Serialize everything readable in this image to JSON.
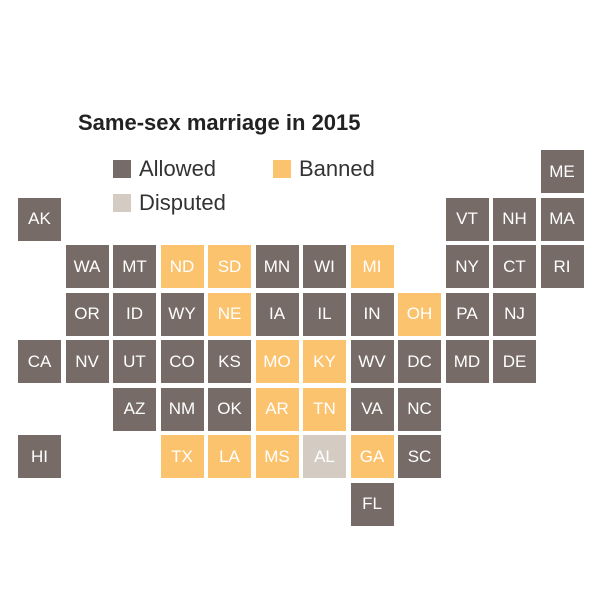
{
  "title": "Same-sex marriage in 2015",
  "colors": {
    "allowed": "#766b66",
    "banned": "#fcc36e",
    "disputed": "#d4ccc2"
  },
  "legend": [
    {
      "key": "allowed",
      "label": "Allowed"
    },
    {
      "key": "banned",
      "label": "Banned"
    },
    {
      "key": "disputed",
      "label": "Disputed"
    }
  ],
  "states": [
    {
      "abbr": "ME",
      "row": 0,
      "col": 11,
      "status": "allowed"
    },
    {
      "abbr": "AK",
      "row": 1,
      "col": 0,
      "status": "allowed"
    },
    {
      "abbr": "VT",
      "row": 1,
      "col": 9,
      "status": "allowed"
    },
    {
      "abbr": "NH",
      "row": 1,
      "col": 10,
      "status": "allowed"
    },
    {
      "abbr": "MA",
      "row": 1,
      "col": 11,
      "status": "allowed"
    },
    {
      "abbr": "WA",
      "row": 2,
      "col": 1,
      "status": "allowed"
    },
    {
      "abbr": "MT",
      "row": 2,
      "col": 2,
      "status": "allowed"
    },
    {
      "abbr": "ND",
      "row": 2,
      "col": 3,
      "status": "banned"
    },
    {
      "abbr": "SD",
      "row": 2,
      "col": 4,
      "status": "banned"
    },
    {
      "abbr": "MN",
      "row": 2,
      "col": 5,
      "status": "allowed"
    },
    {
      "abbr": "WI",
      "row": 2,
      "col": 6,
      "status": "allowed"
    },
    {
      "abbr": "MI",
      "row": 2,
      "col": 7,
      "status": "banned"
    },
    {
      "abbr": "NY",
      "row": 2,
      "col": 9,
      "status": "allowed"
    },
    {
      "abbr": "CT",
      "row": 2,
      "col": 10,
      "status": "allowed"
    },
    {
      "abbr": "RI",
      "row": 2,
      "col": 11,
      "status": "allowed"
    },
    {
      "abbr": "OR",
      "row": 3,
      "col": 1,
      "status": "allowed"
    },
    {
      "abbr": "ID",
      "row": 3,
      "col": 2,
      "status": "allowed"
    },
    {
      "abbr": "WY",
      "row": 3,
      "col": 3,
      "status": "allowed"
    },
    {
      "abbr": "NE",
      "row": 3,
      "col": 4,
      "status": "banned"
    },
    {
      "abbr": "IA",
      "row": 3,
      "col": 5,
      "status": "allowed"
    },
    {
      "abbr": "IL",
      "row": 3,
      "col": 6,
      "status": "allowed"
    },
    {
      "abbr": "IN",
      "row": 3,
      "col": 7,
      "status": "allowed"
    },
    {
      "abbr": "OH",
      "row": 3,
      "col": 8,
      "status": "banned"
    },
    {
      "abbr": "PA",
      "row": 3,
      "col": 9,
      "status": "allowed"
    },
    {
      "abbr": "NJ",
      "row": 3,
      "col": 10,
      "status": "allowed"
    },
    {
      "abbr": "CA",
      "row": 4,
      "col": 0,
      "status": "allowed"
    },
    {
      "abbr": "NV",
      "row": 4,
      "col": 1,
      "status": "allowed"
    },
    {
      "abbr": "UT",
      "row": 4,
      "col": 2,
      "status": "allowed"
    },
    {
      "abbr": "CO",
      "row": 4,
      "col": 3,
      "status": "allowed"
    },
    {
      "abbr": "KS",
      "row": 4,
      "col": 4,
      "status": "allowed"
    },
    {
      "abbr": "MO",
      "row": 4,
      "col": 5,
      "status": "banned"
    },
    {
      "abbr": "KY",
      "row": 4,
      "col": 6,
      "status": "banned"
    },
    {
      "abbr": "WV",
      "row": 4,
      "col": 7,
      "status": "allowed"
    },
    {
      "abbr": "DC",
      "row": 4,
      "col": 8,
      "status": "allowed"
    },
    {
      "abbr": "MD",
      "row": 4,
      "col": 9,
      "status": "allowed"
    },
    {
      "abbr": "DE",
      "row": 4,
      "col": 10,
      "status": "allowed"
    },
    {
      "abbr": "AZ",
      "row": 5,
      "col": 2,
      "status": "allowed"
    },
    {
      "abbr": "NM",
      "row": 5,
      "col": 3,
      "status": "allowed"
    },
    {
      "abbr": "OK",
      "row": 5,
      "col": 4,
      "status": "allowed"
    },
    {
      "abbr": "AR",
      "row": 5,
      "col": 5,
      "status": "banned"
    },
    {
      "abbr": "TN",
      "row": 5,
      "col": 6,
      "status": "banned"
    },
    {
      "abbr": "VA",
      "row": 5,
      "col": 7,
      "status": "allowed"
    },
    {
      "abbr": "NC",
      "row": 5,
      "col": 8,
      "status": "allowed"
    },
    {
      "abbr": "HI",
      "row": 6,
      "col": 0,
      "status": "allowed"
    },
    {
      "abbr": "TX",
      "row": 6,
      "col": 3,
      "status": "banned"
    },
    {
      "abbr": "LA",
      "row": 6,
      "col": 4,
      "status": "banned"
    },
    {
      "abbr": "MS",
      "row": 6,
      "col": 5,
      "status": "banned"
    },
    {
      "abbr": "AL",
      "row": 6,
      "col": 6,
      "status": "disputed"
    },
    {
      "abbr": "GA",
      "row": 6,
      "col": 7,
      "status": "banned"
    },
    {
      "abbr": "SC",
      "row": 6,
      "col": 8,
      "status": "allowed"
    },
    {
      "abbr": "FL",
      "row": 7,
      "col": 7,
      "status": "allowed"
    }
  ]
}
